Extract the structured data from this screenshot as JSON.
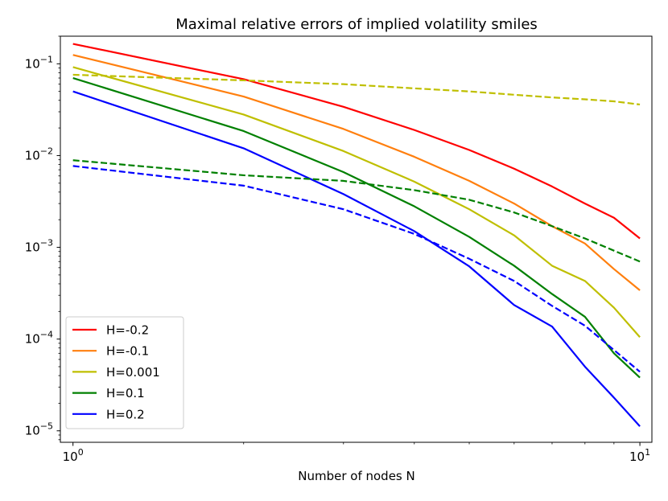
{
  "chart_data": {
    "type": "line",
    "title": "Maximal relative errors of implied volatility smiles",
    "xlabel": "Number of nodes N",
    "ylabel": "",
    "xscale": "log",
    "yscale": "log",
    "xlim": [
      0.95,
      10.5
    ],
    "ylim": [
      7.5e-06,
      0.2
    ],
    "x_ticks": [
      {
        "value": 1,
        "base": "10",
        "exp": "0"
      },
      {
        "value": 10,
        "base": "10",
        "exp": "1"
      }
    ],
    "y_ticks": [
      {
        "value": 1e-05,
        "base": "10",
        "exp": "−5"
      },
      {
        "value": 0.0001,
        "base": "10",
        "exp": "−4"
      },
      {
        "value": 0.001,
        "base": "10",
        "exp": "−3"
      },
      {
        "value": 0.01,
        "base": "10",
        "exp": "−2"
      },
      {
        "value": 0.1,
        "base": "10",
        "exp": "−1"
      }
    ],
    "x": [
      1,
      2,
      3,
      4,
      5,
      6,
      7,
      8,
      9,
      10
    ],
    "legend_position": "lower-left",
    "series": [
      {
        "name": "H=-0.2",
        "color": "#ff0000",
        "style": "solid",
        "values": [
          0.165,
          0.068,
          0.034,
          0.019,
          0.0115,
          0.0072,
          0.0046,
          0.003,
          0.0021,
          0.00125
        ]
      },
      {
        "name": "H=-0.1",
        "color": "#ff7f0e",
        "style": "solid",
        "values": [
          0.125,
          0.044,
          0.0195,
          0.0097,
          0.0053,
          0.003,
          0.0017,
          0.0011,
          0.00058,
          0.00034
        ]
      },
      {
        "name": "H=0.001",
        "color": "#bfbf00",
        "style": "solid",
        "values": [
          0.092,
          0.028,
          0.0112,
          0.0052,
          0.0026,
          0.00135,
          0.00063,
          0.00043,
          0.00022,
          0.000105
        ]
      },
      {
        "name": "H=0.1",
        "color": "#008000",
        "style": "solid",
        "values": [
          0.07,
          0.0185,
          0.0066,
          0.0028,
          0.0013,
          0.00063,
          0.00031,
          0.000175,
          7e-05,
          3.8e-05
        ]
      },
      {
        "name": "H=0.2",
        "color": "#0000ff",
        "style": "solid",
        "values": [
          0.05,
          0.012,
          0.0038,
          0.0015,
          0.00062,
          0.000235,
          0.000137,
          5e-05,
          2.3e-05,
          1.12e-05
        ]
      },
      {
        "name": "",
        "color": "#bfbf00",
        "style": "dashed",
        "values": [
          0.076,
          0.066,
          0.06,
          0.054,
          0.05,
          0.046,
          0.043,
          0.041,
          0.039,
          0.036
        ]
      },
      {
        "name": "",
        "color": "#008000",
        "style": "dashed",
        "values": [
          0.0089,
          0.0061,
          0.0053,
          0.0042,
          0.0033,
          0.0024,
          0.0017,
          0.00125,
          0.00092,
          0.0007
        ]
      },
      {
        "name": "",
        "color": "#0000ff",
        "style": "dashed",
        "values": [
          0.0077,
          0.0047,
          0.0026,
          0.0014,
          0.00075,
          0.00043,
          0.00023,
          0.00014,
          7.6e-05,
          4.4e-05
        ]
      }
    ]
  }
}
